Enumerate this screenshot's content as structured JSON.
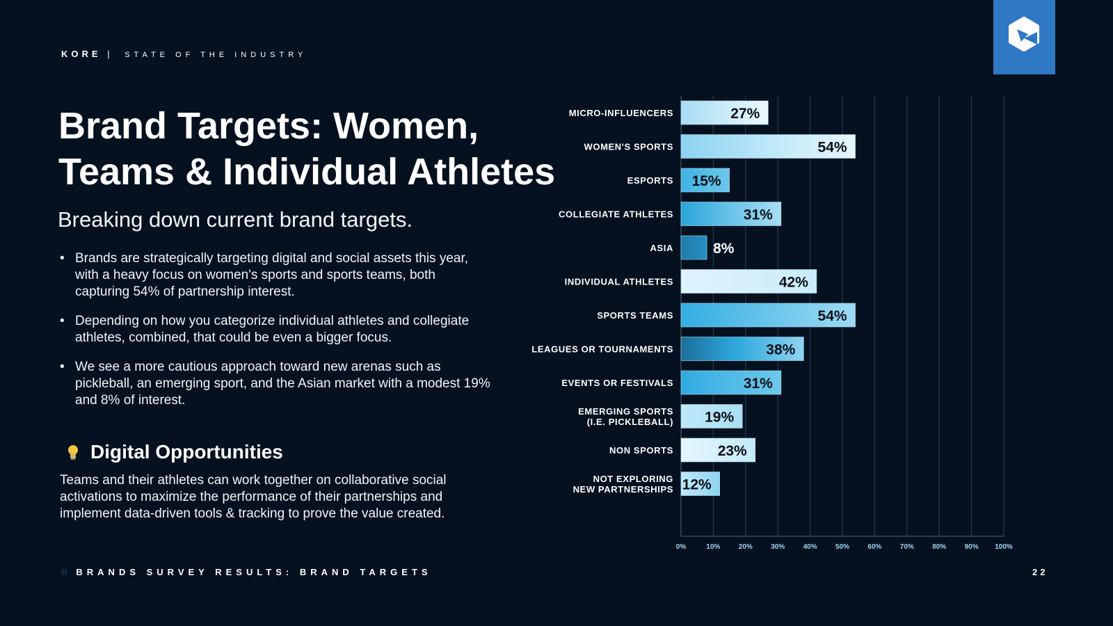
{
  "header": {
    "brand": "KORE",
    "separator": "|",
    "section": "STATE OF THE INDUSTRY"
  },
  "title": "Brand Targets: Women, Teams & Individual Athletes",
  "subtitle": "Breaking down current brand targets.",
  "bullets": [
    "Brands are strategically targeting digital and social assets this year, with a heavy focus on women's sports and sports teams, both capturing 54% of partnership interest.",
    "Depending on how you categorize individual athletes and collegiate athletes, combined, that could be even a bigger focus.",
    "We see a more cautious approach toward new arenas such as pickleball, an emerging sport, and the Asian market with a modest 19% and 8% of interest."
  ],
  "opportunities": {
    "title": "Digital Opportunities",
    "body": "Teams and their athletes can work together on collaborative social activations to maximize the performance of their partnerships and implement data-driven tools & tracking to prove the value created.",
    "icon": "lightbulb-icon"
  },
  "footer": {
    "prefix": "B",
    "label": "BRANDS SURVEY RESULTS: BRAND TARGETS",
    "page": "22"
  },
  "colors": {
    "background": "#06111f",
    "accent": "#2f78c4",
    "bar_light": "#d8f0fb",
    "bar_mid": "#32aee2",
    "bar_dark": "#1b6f99"
  },
  "chart_data": {
    "type": "bar",
    "orientation": "horizontal",
    "categories": [
      [
        "MICRO-INFLUENCERS"
      ],
      [
        "WOMEN'S SPORTS"
      ],
      [
        "ESPORTS"
      ],
      [
        "COLLEGIATE ATHLETES"
      ],
      [
        "ASIA"
      ],
      [
        "INDIVIDUAL ATHLETES"
      ],
      [
        "SPORTS TEAMS"
      ],
      [
        "LEAGUES OR TOURNAMENTS"
      ],
      [
        "EVENTS OR FESTIVALS"
      ],
      [
        "EMERGING SPORTS",
        "(I.E. PICKLEBALL)"
      ],
      [
        "NON SPORTS"
      ],
      [
        "NOT EXPLORING",
        "NEW PARTNERSHIPS"
      ]
    ],
    "values": [
      27,
      54,
      15,
      31,
      8,
      42,
      54,
      38,
      31,
      19,
      23,
      12
    ],
    "value_labels": [
      "27%",
      "54%",
      "15%",
      "31%",
      "8%",
      "42%",
      "54%",
      "38%",
      "31%",
      "19%",
      "23%",
      "12%"
    ],
    "xlim": [
      0,
      100
    ],
    "x_ticks": [
      0,
      10,
      20,
      30,
      40,
      50,
      60,
      70,
      80,
      90,
      100
    ],
    "x_tick_labels": [
      "0%",
      "10%",
      "20%",
      "30%",
      "40%",
      "50%",
      "60%",
      "70%",
      "80%",
      "90%",
      "100%"
    ],
    "grid": true,
    "title": "",
    "xlabel": "",
    "ylabel": ""
  }
}
